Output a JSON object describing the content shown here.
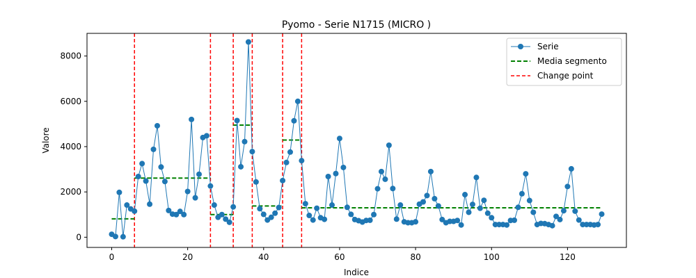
{
  "chart_data": {
    "type": "line",
    "title": "Pyomo - Serie N1715 (MICRO       )",
    "xlabel": "Indice",
    "ylabel": "Valore",
    "xlim": [
      -6.5,
      135.5
    ],
    "ylim": [
      -450,
      9000
    ],
    "xticks": [
      0,
      20,
      40,
      60,
      80,
      100,
      120
    ],
    "yticks": [
      0,
      2000,
      4000,
      6000,
      8000
    ],
    "grid": false,
    "legend_position": "top-right",
    "legend": [
      "Serie",
      "Media segmento",
      "Change point"
    ],
    "colors": {
      "series": "#1f77b4",
      "mean": "#008000",
      "change": "#ff0000"
    },
    "series": [
      {
        "name": "Serie",
        "x": [
          0,
          1,
          2,
          3,
          4,
          5,
          6,
          7,
          8,
          9,
          10,
          11,
          12,
          13,
          14,
          15,
          16,
          17,
          18,
          19,
          20,
          21,
          22,
          23,
          24,
          25,
          26,
          27,
          28,
          29,
          30,
          31,
          32,
          33,
          34,
          35,
          36,
          37,
          38,
          39,
          40,
          41,
          42,
          43,
          44,
          45,
          46,
          47,
          48,
          49,
          50,
          51,
          52,
          53,
          54,
          55,
          56,
          57,
          58,
          59,
          60,
          61,
          62,
          63,
          64,
          65,
          66,
          67,
          68,
          69,
          70,
          71,
          72,
          73,
          74,
          75,
          76,
          77,
          78,
          79,
          80,
          81,
          82,
          83,
          84,
          85,
          86,
          87,
          88,
          89,
          90,
          91,
          92,
          93,
          94,
          95,
          96,
          97,
          98,
          99,
          100,
          101,
          102,
          103,
          104,
          105,
          106,
          107,
          108,
          109,
          110,
          111,
          112,
          113,
          114,
          115,
          116,
          117,
          118,
          119,
          120,
          121,
          122,
          123,
          124,
          125,
          126,
          127,
          128,
          129
        ],
        "values": [
          130,
          30,
          1980,
          20,
          1420,
          1250,
          1150,
          2680,
          3250,
          2480,
          1460,
          3880,
          4920,
          3100,
          2460,
          1180,
          1020,
          1000,
          1140,
          1000,
          2020,
          5200,
          1740,
          2780,
          4400,
          4480,
          2260,
          1420,
          880,
          1000,
          800,
          660,
          1340,
          5150,
          3110,
          4220,
          8620,
          3780,
          2440,
          1260,
          1010,
          760,
          880,
          1060,
          1310,
          2500,
          3300,
          3760,
          5140,
          6000,
          3380,
          1480,
          960,
          760,
          1280,
          860,
          790,
          2680,
          1420,
          2810,
          4360,
          3080,
          1320,
          1010,
          780,
          730,
          670,
          740,
          750,
          1000,
          2140,
          2900,
          2560,
          4060,
          2150,
          800,
          1420,
          680,
          640,
          640,
          680,
          1460,
          1560,
          1840,
          2900,
          1700,
          1380,
          780,
          640,
          700,
          700,
          740,
          540,
          1880,
          1100,
          1450,
          2640,
          1280,
          1630,
          1060,
          860,
          560,
          560,
          560,
          540,
          740,
          750,
          1320,
          1920,
          2800,
          1620,
          1100,
          560,
          610,
          600,
          560,
          510,
          920,
          780,
          1170,
          2240,
          3020,
          1150,
          760,
          560,
          560,
          560,
          540,
          560,
          1020
        ]
      }
    ],
    "segment_means": [
      {
        "x0": 0,
        "x1": 6,
        "value": 810
      },
      {
        "x0": 6,
        "x1": 26,
        "value": 2610
      },
      {
        "x0": 26,
        "x1": 32,
        "value": 1000
      },
      {
        "x0": 32,
        "x1": 37,
        "value": 4950
      },
      {
        "x0": 37,
        "x1": 45,
        "value": 1380
      },
      {
        "x0": 45,
        "x1": 50,
        "value": 4290
      },
      {
        "x0": 50,
        "x1": 129,
        "value": 1300
      }
    ],
    "change_points": [
      6,
      26,
      32,
      37,
      45,
      50
    ]
  }
}
